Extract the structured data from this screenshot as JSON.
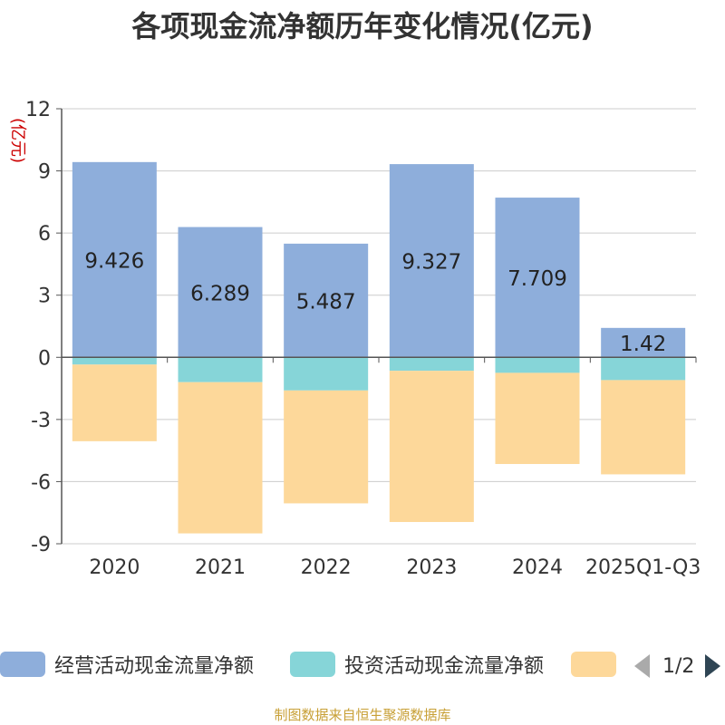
{
  "title": "各项现金流净额历年变化情况(亿元)",
  "chart_data": {
    "type": "bar",
    "stacked": true,
    "title": "各项现金流净额历年变化情况(亿元)",
    "ylabel": "(亿元)",
    "xlabel": "",
    "ylim": [
      -9,
      12
    ],
    "yticks": [
      12,
      9,
      6,
      3,
      0,
      -3,
      -6,
      -9
    ],
    "categories": [
      "2020",
      "2021",
      "2022",
      "2023",
      "2024",
      "2025Q1-Q3"
    ],
    "series": [
      {
        "name": "经营活动现金流量净额",
        "color": "#8eaedb",
        "values": [
          9.426,
          6.289,
          5.487,
          9.327,
          7.709,
          1.42
        ],
        "labels": [
          "9.426",
          "6.289",
          "5.487",
          "9.327",
          "7.709",
          "1.42"
        ]
      },
      {
        "name": "投资活动现金流量净额",
        "color": "#86d5d8",
        "values": [
          -0.35,
          -1.2,
          -1.6,
          -0.65,
          -0.75,
          -1.1
        ]
      },
      {
        "name": "",
        "color": "#fdd89a",
        "values": [
          -3.7,
          -7.3,
          -5.45,
          -7.3,
          -4.4,
          -4.55
        ]
      }
    ],
    "grid": true
  },
  "legend": {
    "items": [
      {
        "label": "经营活动现金流量净额",
        "color": "#8eaedb"
      },
      {
        "label": "投资活动现金流量净额",
        "color": "#86d5d8"
      },
      {
        "label": "",
        "color": "#fdd89a"
      }
    ],
    "page": "1/2"
  },
  "source": "制图数据来自恒生聚源数据库"
}
